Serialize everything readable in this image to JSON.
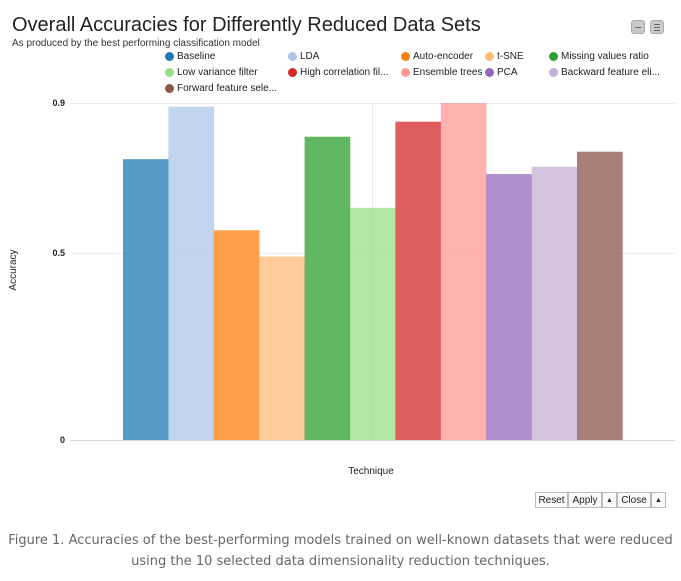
{
  "chart_data": {
    "type": "bar",
    "title": "Overall Accuracies for Differently Reduced Data Sets",
    "subtitle": "As produced by the best performing classification model",
    "xlabel": "Technique",
    "ylabel": "Accuracy",
    "ylim": [
      0,
      0.9
    ],
    "yticks": [
      "0",
      "0.5",
      "0.9"
    ],
    "legend_position": "top",
    "series": [
      {
        "name": "Baseline",
        "legend_label": "Baseline",
        "value": 0.75,
        "color": "#1f77b4"
      },
      {
        "name": "LDA",
        "legend_label": "LDA",
        "value": 0.89,
        "color": "#aec7e8"
      },
      {
        "name": "Auto-encoder",
        "legend_label": "Auto-encoder",
        "value": 0.56,
        "color": "#ff7f0e"
      },
      {
        "name": "t-SNE",
        "legend_label": "t-SNE",
        "value": 0.49,
        "color": "#ffbb78"
      },
      {
        "name": "Missing values ratio",
        "legend_label": "Missing values ratio",
        "value": 0.81,
        "color": "#2ca02c"
      },
      {
        "name": "Low variance filter",
        "legend_label": "Low variance filter",
        "value": 0.62,
        "color": "#98df8a"
      },
      {
        "name": "High correlation filter",
        "legend_label": "High correlation fil...",
        "value": 0.85,
        "color": "#d62728"
      },
      {
        "name": "Ensemble trees",
        "legend_label": "Ensemble trees",
        "value": 0.9,
        "color": "#ff9896"
      },
      {
        "name": "PCA",
        "legend_label": "PCA",
        "value": 0.71,
        "color": "#9467bd"
      },
      {
        "name": "Backward feature elimination",
        "legend_label": "Backward feature eli...",
        "value": 0.73,
        "color": "#c5b0d5"
      },
      {
        "name": "Forward feature selection",
        "legend_label": "Forward feature sele...",
        "value": 0.77,
        "color": "#8c564b"
      }
    ]
  },
  "controls": {
    "reset_label": "Reset",
    "apply_label": "Apply",
    "up_arrow": "▲",
    "close_label": "Close"
  },
  "caption": "Figure 1. Accuracies of the best-performing models trained on well-known datasets that were reduced using the 10 selected data dimensionality reduction techniques."
}
